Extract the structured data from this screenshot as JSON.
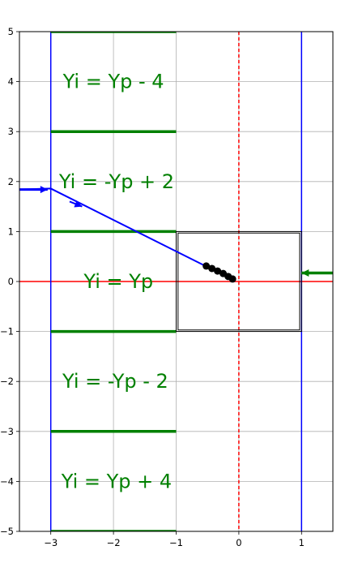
{
  "chart_data": {
    "type": "line",
    "title": "",
    "xlabel": "",
    "ylabel": "",
    "xlim": [
      -3.5,
      1.5
    ],
    "ylim": [
      -5,
      5
    ],
    "grid": true,
    "x_ticks": [
      -3,
      -2,
      -1,
      0,
      1
    ],
    "y_ticks": [
      -5,
      -4,
      -3,
      -2,
      -1,
      0,
      1,
      2,
      3,
      4,
      5
    ],
    "colors": {
      "grid": "#b0b0b0",
      "region_boundary": "#0000ff",
      "axis_line": "#ff0000",
      "green": "#008000",
      "ray": "#0000ff",
      "box": "#000000",
      "points": "#000000"
    },
    "vertical_boundaries": [
      -3,
      1
    ],
    "red_hline_y": 0,
    "red_dashed_vline_x": 0,
    "green_segments": {
      "x_range": [
        -3,
        -1
      ],
      "y_values": [
        -5,
        -3,
        -1,
        1,
        3,
        5
      ]
    },
    "box_outer": {
      "x": [
        -1,
        1
      ],
      "y": [
        -1,
        1
      ]
    },
    "box_inner_offset": 0.03,
    "ray_line": {
      "x": [
        -3.5,
        -3.0,
        -0.55
      ],
      "y": [
        1.84,
        1.86,
        0.32
      ]
    },
    "ray_arrow_entry": {
      "from": [
        -3.5,
        1.84
      ],
      "to": [
        -3.05,
        1.84
      ]
    },
    "ray_arrow_mid": {
      "from": [
        -2.7,
        1.6
      ],
      "to": [
        -2.5,
        1.5
      ]
    },
    "green_arrow": {
      "from": [
        1.5,
        0.17
      ],
      "to": [
        1.0,
        0.17
      ]
    },
    "points": [
      {
        "x": -0.52,
        "y": 0.31
      },
      {
        "x": -0.43,
        "y": 0.26
      },
      {
        "x": -0.34,
        "y": 0.21
      },
      {
        "x": -0.25,
        "y": 0.16
      },
      {
        "x": -0.17,
        "y": 0.1
      },
      {
        "x": -0.1,
        "y": 0.05
      }
    ],
    "region_labels": [
      {
        "text": "Yi = Yp - 4",
        "x": -2.0,
        "y": 4.0
      },
      {
        "text": "Yi = -Yp + 2",
        "x": -1.95,
        "y": 2.0
      },
      {
        "text": "Yi = Yp",
        "x": -1.92,
        "y": 0.0
      },
      {
        "text": "Yi = -Yp - 2",
        "x": -1.97,
        "y": -2.0
      },
      {
        "text": "Yi = Yp + 4",
        "x": -1.95,
        "y": -4.0
      }
    ]
  }
}
